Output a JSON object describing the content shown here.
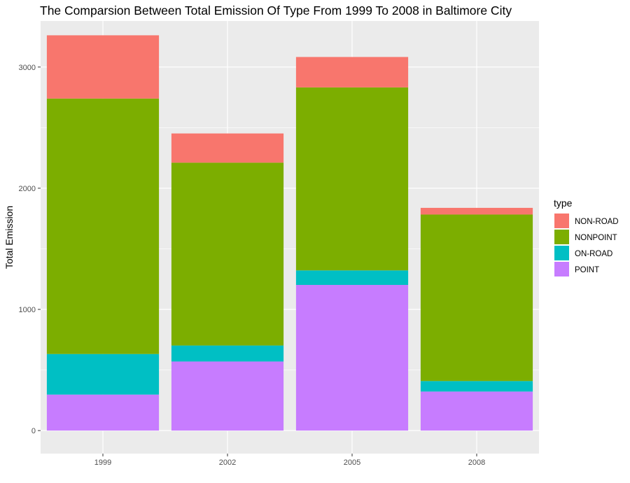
{
  "chart_data": {
    "type": "bar",
    "stacked": true,
    "title": "The Comparsion Between Total Emission Of Type From 1999 To 2008 in Baltimore City",
    "xlabel": "",
    "ylabel": "Total Emission",
    "categories": [
      "1999",
      "2002",
      "2005",
      "2008"
    ],
    "ylim": [
      -190,
      3380
    ],
    "yticks": [
      0,
      1000,
      2000,
      3000
    ],
    "grid": true,
    "legend": {
      "title": "type",
      "position": "right"
    },
    "series": [
      {
        "name": "POINT",
        "color": "#C77CFF",
        "values": [
          297,
          570,
          1202,
          322
        ]
      },
      {
        "name": "ON-ROAD",
        "color": "#00BFC4",
        "values": [
          335,
          132,
          120,
          87
        ]
      },
      {
        "name": "NONPOINT",
        "color": "#7CAE00",
        "values": [
          2108,
          1509,
          1510,
          1374
        ]
      },
      {
        "name": "NON-ROAD",
        "color": "#F8766D",
        "values": [
          522,
          241,
          251,
          55
        ]
      }
    ],
    "legend_order": [
      "NON-ROAD",
      "NONPOINT",
      "ON-ROAD",
      "POINT"
    ]
  }
}
